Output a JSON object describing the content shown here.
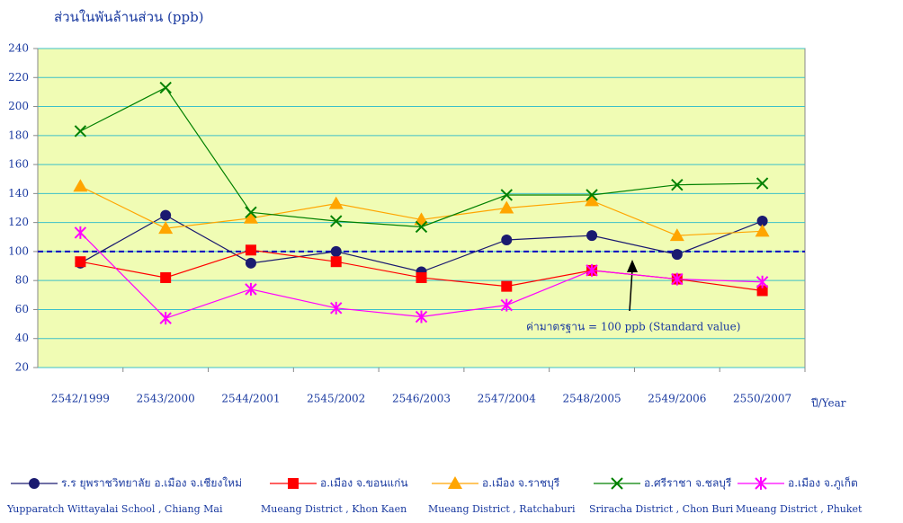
{
  "chart_data": {
    "type": "line",
    "y_axis_label": "ส่วนในพันล้านส่วน   (ppb)",
    "x_axis_label": "ปี/Year",
    "categories": [
      "2542/1999",
      "2543/2000",
      "2544/2001",
      "2545/2002",
      "2546/2003",
      "2547/2004",
      "2548/2005",
      "2549/2006",
      "2550/2007"
    ],
    "ylim": [
      20,
      240
    ],
    "yticks": [
      20,
      40,
      60,
      80,
      100,
      120,
      140,
      160,
      180,
      200,
      220,
      240
    ],
    "grid": true,
    "standard": 100,
    "annotation": "ค่ามาตรฐาน  = 100 ppb (Standard value)",
    "legend_position": "bottom",
    "series": [
      {
        "name": "ร.ร ยุพราชวิทยาลัย อ.เมือง จ.เชียงใหม่",
        "label_en": "Yupparatch Wittayalai School , Chiang Mai",
        "color": "#1a1a70",
        "marker": "circle",
        "values": [
          92,
          125,
          92,
          100,
          86,
          108,
          111,
          98,
          121
        ]
      },
      {
        "name": "อ.เมือง จ.ขอนแก่น",
        "label_en": "Mueang District , Khon Kaen",
        "color": "#ff0000",
        "marker": "square",
        "values": [
          93,
          82,
          101,
          93,
          82,
          76,
          87,
          81,
          73
        ]
      },
      {
        "name": "อ.เมือง จ.ราชบุรี",
        "label_en": "Mueang District , Ratchaburi",
        "color": "#ffa500",
        "marker": "triangle",
        "values": [
          145,
          116,
          123,
          133,
          122,
          130,
          135,
          111,
          114
        ]
      },
      {
        "name": "อ.ศรีราชา จ.ชลบุรี",
        "label_en": "Sriracha District , Chon Buri",
        "color": "#008000",
        "marker": "x",
        "values": [
          183,
          213,
          127,
          121,
          117,
          139,
          139,
          146,
          147
        ]
      },
      {
        "name": "อ.เมือง จ.ภูเก็ต",
        "label_en": "Mueang District , Phuket",
        "color": "#ff00ff",
        "marker": "star",
        "values": [
          113,
          54,
          74,
          61,
          55,
          63,
          87,
          81,
          79
        ]
      }
    ]
  }
}
